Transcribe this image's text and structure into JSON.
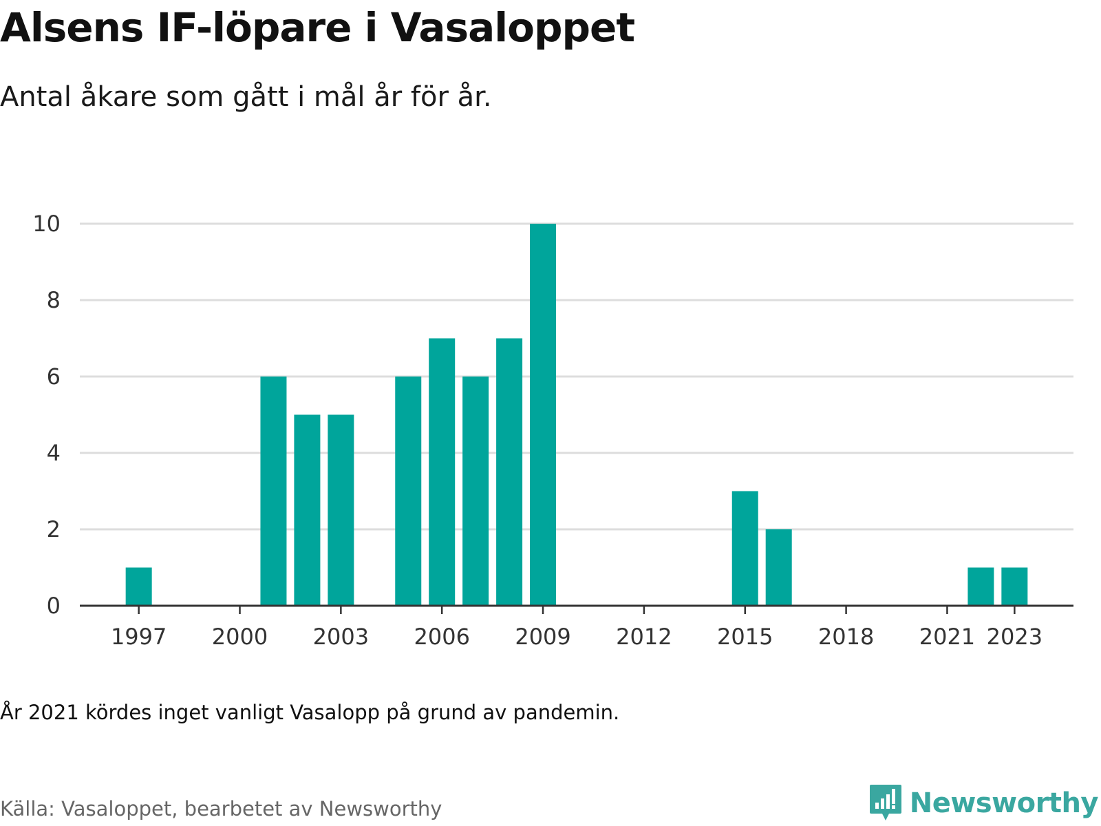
{
  "title": "Alsens IF-löpare i Vasaloppet",
  "subtitle": "Antal åkare som gått i mål år för år.",
  "note": "År 2021 kördes inget vanligt Vasalopp på grund av pandemin.",
  "source": "Källa: Vasaloppet, bearbetet av Newsworthy",
  "brand": {
    "name": "Newsworthy",
    "icon": "newsworthy-logo-icon"
  },
  "colors": {
    "bar": "#00a59b",
    "grid": "#dddddd",
    "axis": "#333333",
    "brand": "#3aa7a0"
  },
  "chart_data": {
    "type": "bar",
    "x": [
      1997,
      2001,
      2002,
      2003,
      2005,
      2006,
      2007,
      2008,
      2009,
      2015,
      2016,
      2022,
      2023
    ],
    "values": [
      1,
      6,
      5,
      5,
      6,
      7,
      6,
      7,
      10,
      3,
      2,
      1,
      1
    ],
    "xlim": [
      1995.25,
      2024.75
    ],
    "ylim": [
      0,
      10
    ],
    "x_ticks": [
      "1997",
      "2000",
      "2003",
      "2006",
      "2009",
      "2012",
      "2015",
      "2018",
      "2021",
      "2023"
    ],
    "y_ticks": [
      "0",
      "2",
      "4",
      "6",
      "8",
      "10"
    ],
    "xlabel": "",
    "ylabel": "",
    "grid": true,
    "legend": "none"
  }
}
